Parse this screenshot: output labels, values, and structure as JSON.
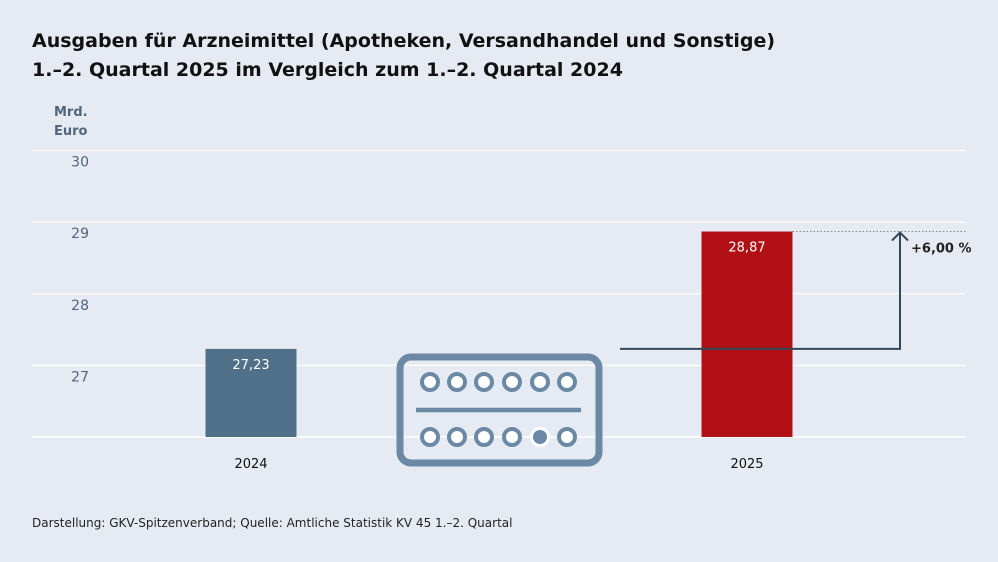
{
  "title": {
    "line1": "Ausgaben für Arzneimittel (Apotheken, Versandhandel und Sonstige)",
    "line2": "1.–2. Quartal 2025 im Vergleich zum 1.–2. Quartal 2024"
  },
  "unit": {
    "line1": "Mrd.",
    "line2": "Euro"
  },
  "chart_data": {
    "type": "bar",
    "categories": [
      "2024",
      "2025"
    ],
    "values": [
      27.23,
      28.87
    ],
    "value_labels": [
      "27,23",
      "28,87"
    ],
    "colors": [
      "#50708a",
      "#b11115"
    ],
    "yticks": [
      27,
      28,
      29,
      30
    ],
    "ytick_labels": [
      "27",
      "28",
      "29",
      "30"
    ],
    "ylim": [
      26,
      30
    ],
    "ylabel": "Mrd. Euro",
    "annotation": "+6,00 %",
    "grid": true
  },
  "icon": "pill-blister-icon",
  "source": "Darstellung: GKV-Spitzenverband; Quelle: Amtliche Statistik KV 45 1.–2. Quartal"
}
